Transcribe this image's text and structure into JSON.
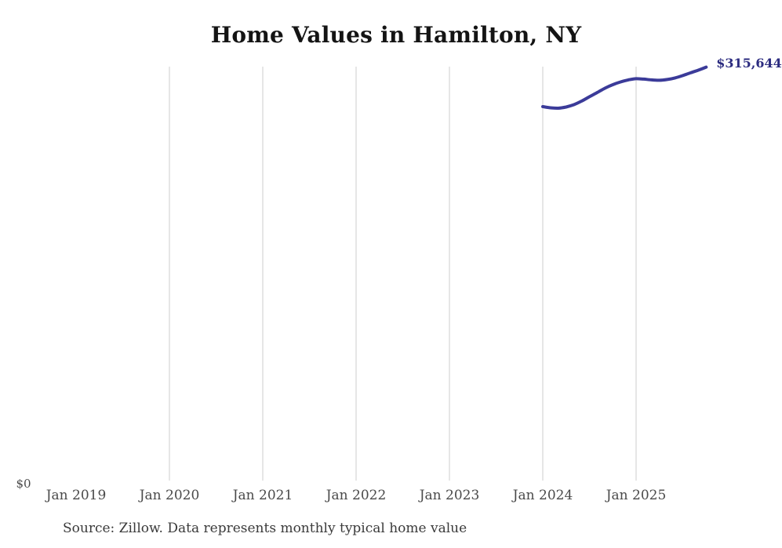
{
  "chart_data": {
    "type": "line",
    "title": "Home Values in Hamilton, NY",
    "source_note": "Source: Zillow. Data represents monthly typical home value",
    "x_tick_labels": [
      "Jan 2019",
      "Jan 2020",
      "Jan 2021",
      "Jan 2022",
      "Jan 2023",
      "Jan 2024",
      "Jan 2025"
    ],
    "y_zero_label": "$0",
    "last_value_label": "$315,644",
    "grid": "vertical-gridlines-only",
    "legend_position": "none",
    "ylim": [
      0,
      316000
    ],
    "x_axis_start": "2019-01",
    "series": [
      {
        "name": "Monthly typical home value",
        "x": [
          "2024-01",
          "2024-02",
          "2024-03",
          "2024-04",
          "2024-05",
          "2024-06",
          "2024-07",
          "2024-08",
          "2024-09",
          "2024-10",
          "2024-11",
          "2024-12",
          "2025-01",
          "2025-02",
          "2025-03",
          "2025-04",
          "2025-05",
          "2025-06",
          "2025-07",
          "2025-08",
          "2025-09",
          "2025-10"
        ],
        "values": [
          285600,
          284700,
          284400,
          285300,
          287100,
          289800,
          293100,
          296300,
          299600,
          302300,
          304400,
          305900,
          306800,
          306500,
          305900,
          305600,
          306200,
          307400,
          309200,
          311300,
          313300,
          315644
        ]
      }
    ],
    "colors": {
      "line": "#3b3b99",
      "end_label": "#2c2c80",
      "gridline": "#cccccc",
      "title": "#141414",
      "axis_label": "#4a4a4a",
      "source": "#3a3a3a"
    }
  }
}
